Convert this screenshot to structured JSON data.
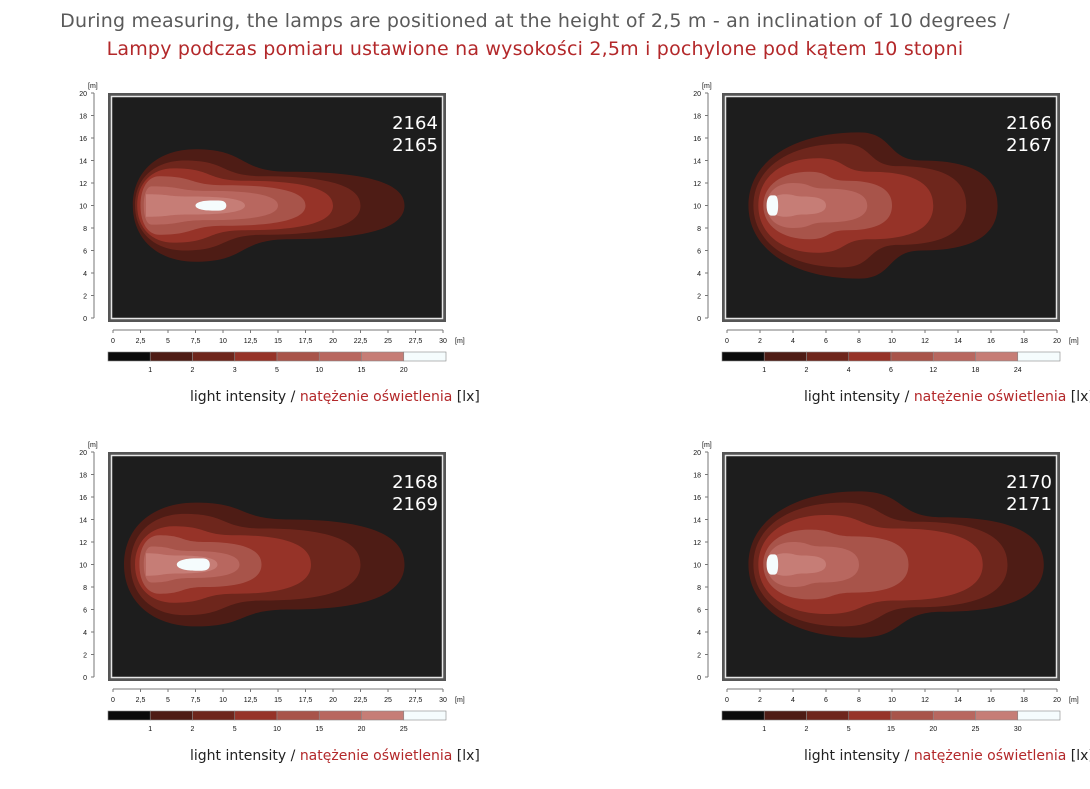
{
  "header": {
    "title_en": "During measuring, the lamps are positioned at the height of 2,5 m - an inclination of 10 degrees /",
    "title_pl": "Lampy podczas pomiaru ustawione na wysokości 2,5m i pochylone pod kątem 10 stopni"
  },
  "caption": {
    "en": "light intensity",
    "sep": " / ",
    "pl": "natężenie oświetlenia",
    "unit": " [lx]"
  },
  "legend_colors": [
    "#0a0a0a",
    "#4e1c15",
    "#6e261c",
    "#963328",
    "#a8544a",
    "#b8675f",
    "#c67d76",
    "#f5fcfd"
  ],
  "chart_data": [
    {
      "type": "heatmap",
      "label_lines": [
        "2164",
        "2165"
      ],
      "x_unit": "[m]",
      "y_unit": "[m]",
      "xlim": [
        0,
        30
      ],
      "ylim": [
        0,
        20
      ],
      "x_ticks": [
        "0",
        "2,5",
        "5",
        "7,5",
        "10",
        "12,5",
        "15",
        "17,5",
        "20",
        "22,5",
        "25",
        "27,5",
        "30"
      ],
      "y_ticks": [
        "0",
        "2",
        "4",
        "6",
        "8",
        "10",
        "12",
        "14",
        "16",
        "18",
        "20"
      ],
      "levels": [
        "1",
        "2",
        "3",
        "5",
        "10",
        "15",
        "20"
      ],
      "grid": false
    },
    {
      "type": "heatmap",
      "label_lines": [
        "2166",
        "2167"
      ],
      "x_unit": "[m]",
      "y_unit": "[m]",
      "xlim": [
        0,
        20
      ],
      "ylim": [
        0,
        20
      ],
      "x_ticks": [
        "0",
        "2",
        "4",
        "6",
        "8",
        "10",
        "12",
        "14",
        "16",
        "18",
        "20"
      ],
      "y_ticks": [
        "0",
        "2",
        "4",
        "6",
        "8",
        "10",
        "12",
        "14",
        "16",
        "18",
        "20"
      ],
      "levels": [
        "1",
        "2",
        "4",
        "6",
        "12",
        "18",
        "24"
      ],
      "grid": false
    },
    {
      "type": "heatmap",
      "label_lines": [
        "2168",
        "2169"
      ],
      "x_unit": "[m]",
      "y_unit": "[m]",
      "xlim": [
        0,
        30
      ],
      "ylim": [
        0,
        20
      ],
      "x_ticks": [
        "0",
        "2,5",
        "5",
        "7,5",
        "10",
        "12,5",
        "15",
        "17,5",
        "20",
        "22,5",
        "25",
        "27,5",
        "30"
      ],
      "y_ticks": [
        "0",
        "2",
        "4",
        "6",
        "8",
        "10",
        "12",
        "14",
        "16",
        "18",
        "20"
      ],
      "levels": [
        "1",
        "2",
        "5",
        "10",
        "15",
        "20",
        "25"
      ],
      "grid": false
    },
    {
      "type": "heatmap",
      "label_lines": [
        "2170",
        "2171"
      ],
      "x_unit": "[m]",
      "y_unit": "[m]",
      "xlim": [
        0,
        20
      ],
      "ylim": [
        0,
        20
      ],
      "x_ticks": [
        "0",
        "2",
        "4",
        "6",
        "8",
        "10",
        "12",
        "14",
        "16",
        "18",
        "20"
      ],
      "y_ticks": [
        "0",
        "2",
        "4",
        "6",
        "8",
        "10",
        "12",
        "14",
        "16",
        "18",
        "20"
      ],
      "levels": [
        "1",
        "2",
        "5",
        "15",
        "20",
        "25",
        "30"
      ],
      "grid": false
    }
  ]
}
